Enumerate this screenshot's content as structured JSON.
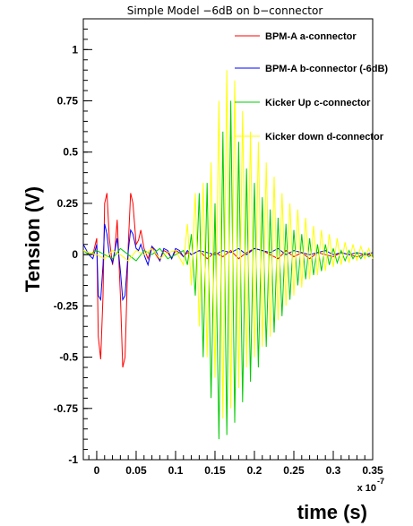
{
  "chart_data": {
    "type": "line",
    "title": "Simple Model −6dB on b−connector",
    "xlabel": "time (s)",
    "ylabel": "Tension (V)",
    "x_scale_label": "x 10",
    "x_scale_exponent": "-7",
    "xlim": [
      -0.017,
      0.35
    ],
    "ylim": [
      -1.0,
      1.15
    ],
    "x_ticks": [
      0,
      0.05,
      0.1,
      0.15,
      0.2,
      0.25,
      0.3,
      0.35
    ],
    "x_tick_labels": [
      "0",
      "0.05",
      "0.1",
      "0.15",
      "0.2",
      "0.25",
      "0.3",
      "0.35"
    ],
    "y_ticks": [
      -1,
      -0.75,
      -0.5,
      -0.25,
      0,
      0.25,
      0.5,
      0.75,
      1
    ],
    "y_tick_labels": [
      "-1",
      "-0.75",
      "-0.5",
      "-0.25",
      "0",
      "0.25",
      "0.5",
      "0.75",
      "1"
    ],
    "legend_position": "top-right",
    "series": [
      {
        "name": "BPM-A  a-connector",
        "color": "#ff0000",
        "x": [
          -0.017,
          -0.01,
          -0.005,
          0,
          0.002,
          0.005,
          0.008,
          0.01,
          0.013,
          0.016,
          0.02,
          0.023,
          0.026,
          0.03,
          0.033,
          0.036,
          0.04,
          0.043,
          0.046,
          0.05,
          0.053,
          0.056,
          0.06,
          0.065,
          0.07,
          0.075,
          0.08,
          0.085,
          0.09,
          0.095,
          0.1,
          0.105,
          0.11,
          0.115,
          0.12,
          0.13,
          0.14,
          0.15,
          0.16,
          0.17,
          0.18,
          0.19,
          0.2,
          0.21,
          0.22,
          0.23,
          0.24,
          0.25,
          0.26,
          0.27,
          0.28,
          0.29,
          0.3,
          0.31,
          0.32,
          0.33,
          0.34,
          0.35
        ],
        "y": [
          0.02,
          0.01,
          0.0,
          0.08,
          -0.4,
          -0.51,
          -0.2,
          0.25,
          0.3,
          0.08,
          -0.05,
          0.02,
          0.17,
          -0.2,
          -0.55,
          -0.5,
          0.05,
          0.3,
          0.25,
          0.05,
          0.07,
          0.12,
          0.03,
          -0.02,
          0.04,
          0.0,
          -0.03,
          0.02,
          0.01,
          -0.02,
          0.02,
          0.01,
          -0.01,
          0.01,
          0.0,
          0.02,
          -0.02,
          0.01,
          -0.01,
          0.02,
          -0.02,
          0.01,
          0.03,
          0.02,
          0.0,
          -0.02,
          0.02,
          -0.01,
          0.01,
          -0.02,
          0.01,
          0.0,
          -0.01,
          0.01,
          0.0,
          -0.01,
          0.0,
          0.0
        ]
      },
      {
        "name": "BPM-A b-connector (-6dB)",
        "color": "#0000ff",
        "x": [
          -0.017,
          -0.01,
          -0.005,
          0,
          0.002,
          0.005,
          0.008,
          0.01,
          0.013,
          0.016,
          0.02,
          0.023,
          0.026,
          0.03,
          0.033,
          0.036,
          0.04,
          0.043,
          0.046,
          0.05,
          0.053,
          0.056,
          0.06,
          0.065,
          0.07,
          0.075,
          0.08,
          0.085,
          0.09,
          0.095,
          0.1,
          0.105,
          0.11,
          0.115,
          0.12,
          0.13,
          0.14,
          0.15,
          0.16,
          0.17,
          0.18,
          0.19,
          0.2,
          0.21,
          0.22,
          0.23,
          0.24,
          0.25,
          0.26,
          0.27,
          0.28,
          0.29,
          0.3,
          0.31,
          0.32,
          0.33,
          0.34,
          0.35
        ],
        "y": [
          0.05,
          0.0,
          -0.02,
          0.05,
          -0.2,
          -0.22,
          -0.05,
          0.15,
          0.1,
          0.0,
          -0.04,
          0.02,
          0.08,
          -0.08,
          -0.22,
          -0.2,
          0.02,
          0.12,
          0.1,
          0.03,
          0.02,
          0.05,
          0.0,
          -0.05,
          0.04,
          0.02,
          -0.03,
          0.03,
          0.02,
          -0.02,
          0.03,
          0.02,
          -0.01,
          0.02,
          0.0,
          0.02,
          0.01,
          0.0,
          0.02,
          0.01,
          0.03,
          0.0,
          0.03,
          0.02,
          0.01,
          0.03,
          0.0,
          0.02,
          0.01,
          0.0,
          0.01,
          0.02,
          0.0,
          0.01,
          0.0,
          0.01,
          0.0,
          0.01
        ]
      },
      {
        "name": "Kicker Up c-connector",
        "color": "#00cc00",
        "x": [
          -0.017,
          -0.01,
          0.0,
          0.01,
          0.02,
          0.03,
          0.04,
          0.05,
          0.06,
          0.07,
          0.08,
          0.09,
          0.1,
          0.11,
          0.115,
          0.12,
          0.125,
          0.13,
          0.135,
          0.14,
          0.145,
          0.15,
          0.155,
          0.16,
          0.165,
          0.17,
          0.175,
          0.18,
          0.185,
          0.19,
          0.195,
          0.2,
          0.205,
          0.21,
          0.215,
          0.22,
          0.225,
          0.23,
          0.235,
          0.24,
          0.245,
          0.25,
          0.255,
          0.26,
          0.265,
          0.27,
          0.275,
          0.28,
          0.285,
          0.29,
          0.295,
          0.3,
          0.305,
          0.31,
          0.315,
          0.32,
          0.325,
          0.33,
          0.335,
          0.34,
          0.345,
          0.35
        ],
        "y": [
          0.02,
          0.0,
          0.02,
          0.0,
          -0.02,
          0.03,
          0.0,
          -0.03,
          0.02,
          0.0,
          0.03,
          -0.02,
          0.0,
          0.02,
          -0.05,
          0.1,
          -0.2,
          0.3,
          -0.5,
          0.35,
          -0.7,
          0.25,
          -0.9,
          0.6,
          -0.88,
          0.75,
          -0.82,
          0.55,
          -0.72,
          0.42,
          -0.62,
          0.35,
          -0.55,
          0.28,
          -0.45,
          0.22,
          -0.38,
          0.18,
          -0.3,
          0.15,
          -0.22,
          0.12,
          -0.15,
          0.1,
          -0.12,
          0.08,
          -0.1,
          0.05,
          -0.08,
          0.05,
          -0.05,
          0.03,
          -0.04,
          0.02,
          -0.03,
          0.02,
          -0.02,
          0.01,
          -0.02,
          0.01,
          -0.01,
          0.0
        ]
      },
      {
        "name": "Kicker down d-connector",
        "color": "#ffff00",
        "x": [
          -0.017,
          -0.01,
          0.0,
          0.01,
          0.02,
          0.03,
          0.04,
          0.05,
          0.06,
          0.07,
          0.08,
          0.09,
          0.1,
          0.11,
          0.115,
          0.12,
          0.125,
          0.13,
          0.135,
          0.14,
          0.145,
          0.15,
          0.155,
          0.16,
          0.165,
          0.17,
          0.175,
          0.18,
          0.185,
          0.19,
          0.195,
          0.2,
          0.205,
          0.21,
          0.215,
          0.22,
          0.225,
          0.23,
          0.235,
          0.24,
          0.245,
          0.25,
          0.255,
          0.26,
          0.265,
          0.27,
          0.275,
          0.28,
          0.285,
          0.29,
          0.295,
          0.3,
          0.305,
          0.31,
          0.315,
          0.32,
          0.325,
          0.33,
          0.335,
          0.34,
          0.345,
          0.35
        ],
        "y": [
          0.02,
          0.01,
          0.0,
          -0.02,
          0.02,
          0.0,
          -0.03,
          0.02,
          0.0,
          0.03,
          -0.02,
          0.01,
          0.02,
          -0.05,
          0.15,
          -0.15,
          0.3,
          -0.35,
          0.35,
          -0.5,
          0.45,
          -0.6,
          0.75,
          -0.8,
          0.9,
          -0.75,
          0.85,
          -0.65,
          0.7,
          -0.55,
          0.6,
          -0.5,
          0.55,
          -0.45,
          0.45,
          -0.4,
          0.38,
          -0.32,
          0.3,
          -0.25,
          0.25,
          -0.2,
          0.22,
          -0.16,
          0.18,
          -0.12,
          0.14,
          -0.1,
          0.12,
          -0.08,
          0.1,
          -0.06,
          0.08,
          -0.05,
          0.06,
          -0.04,
          0.05,
          -0.03,
          0.04,
          -0.02,
          0.03,
          -0.02
        ]
      }
    ]
  }
}
